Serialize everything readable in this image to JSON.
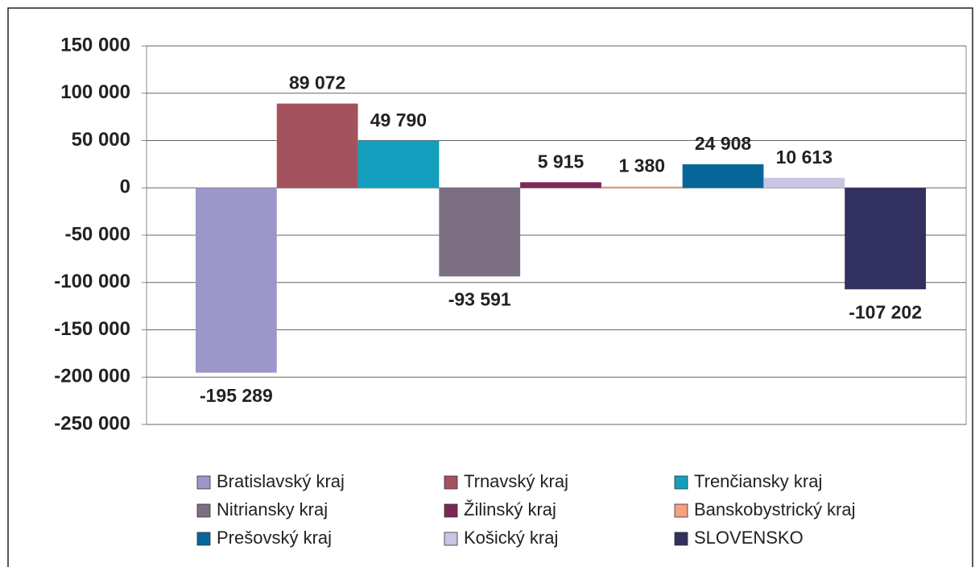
{
  "chart_data": {
    "type": "bar",
    "ylim": [
      -250000,
      150000
    ],
    "yticks": [
      {
        "value": 150000,
        "label": "150 000"
      },
      {
        "value": 100000,
        "label": "100 000"
      },
      {
        "value": 50000,
        "label": "50 000"
      },
      0,
      {
        "value": -50000,
        "label": "-50 000"
      },
      {
        "value": -100000,
        "label": "-100 000"
      },
      {
        "value": -150000,
        "label": "-150 000"
      },
      {
        "value": -200000,
        "label": "-200 000"
      },
      {
        "value": -250000,
        "label": "-250 000"
      }
    ],
    "grid": true,
    "legend": "bottom",
    "series": [
      {
        "name": "Bratislavský kraj",
        "color": "#9b97c9",
        "values": [
          -195289
        ],
        "value_labels": [
          "-195 289"
        ]
      },
      {
        "name": "Trnavský kraj",
        "color": "#a5525f",
        "values": [
          89072
        ],
        "value_labels": [
          "89 072"
        ]
      },
      {
        "name": "Trenčiansky kraj",
        "color": "#139fbd",
        "values": [
          49790
        ],
        "value_labels": [
          "49 790"
        ]
      },
      {
        "name": "Nitriansky kraj",
        "color": "#7c6f81",
        "values": [
          -93591
        ],
        "value_labels": [
          "-93 591"
        ]
      },
      {
        "name": "Žilinský kraj",
        "color": "#7b2857",
        "values": [
          5915
        ],
        "value_labels": [
          "5 915"
        ]
      },
      {
        "name": "Banskobystrický kraj",
        "color": "#f5a17f",
        "values": [
          1380
        ],
        "value_labels": [
          "1 380"
        ]
      },
      {
        "name": "Prešovský kraj",
        "color": "#07679a",
        "values": [
          24908
        ],
        "value_labels": [
          "24 908"
        ]
      },
      {
        "name": "Košický kraj",
        "color": "#c9c5e3",
        "values": [
          10613
        ],
        "value_labels": [
          "10 613"
        ]
      },
      {
        "name": "SLOVENSKO",
        "color": "#31305e",
        "values": [
          -107202
        ],
        "value_labels": [
          "-107 202"
        ]
      }
    ]
  }
}
